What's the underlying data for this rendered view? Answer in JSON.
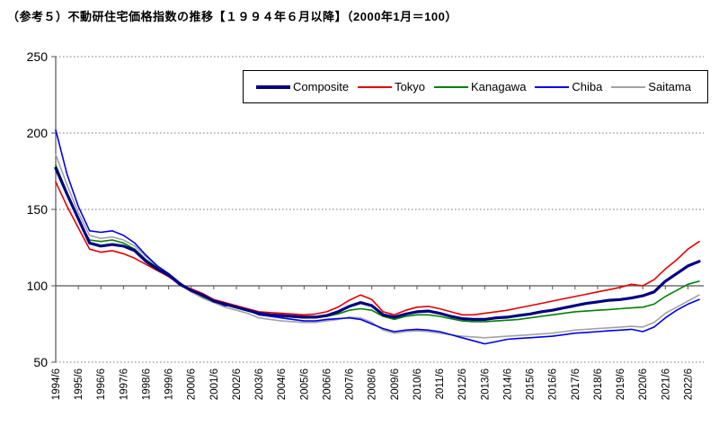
{
  "title": "（参考５）不動研住宅価格指数の推移【１９９４年６月以降】（2000年1月＝100）",
  "chart_data": {
    "type": "line",
    "title": "不動研住宅価格指数の推移（2000年1月＝100）",
    "base_note": "2000年1月＝100",
    "legend_position": "top",
    "grid": "horizontal-dotted",
    "ylim": [
      50,
      250
    ],
    "yticks": [
      50,
      100,
      150,
      200,
      250
    ],
    "x_axis_crosses_at": 100,
    "x_tick_interval": "yearly (June)",
    "dates": [
      "1994/6",
      "1994/12",
      "1995/6",
      "1995/12",
      "1996/6",
      "1996/12",
      "1997/6",
      "1997/12",
      "1998/6",
      "1998/12",
      "1999/6",
      "1999/12",
      "2000/6",
      "2000/12",
      "2001/6",
      "2001/12",
      "2002/6",
      "2002/12",
      "2003/6",
      "2003/12",
      "2004/6",
      "2004/12",
      "2005/6",
      "2005/12",
      "2006/6",
      "2006/12",
      "2007/6",
      "2007/12",
      "2008/6",
      "2008/12",
      "2009/6",
      "2009/12",
      "2010/6",
      "2010/12",
      "2011/6",
      "2011/12",
      "2012/6",
      "2012/12",
      "2013/6",
      "2013/12",
      "2014/6",
      "2014/12",
      "2015/6",
      "2015/12",
      "2016/6",
      "2016/12",
      "2017/6",
      "2017/12",
      "2018/6",
      "2018/12",
      "2019/6",
      "2019/12",
      "2020/6",
      "2020/12",
      "2021/6",
      "2021/12",
      "2022/6",
      "2022/12"
    ],
    "series": [
      {
        "name": "Composite",
        "color": "#000080",
        "line_width": "thick",
        "values": [
          177,
          160,
          144,
          128,
          126,
          127,
          126,
          123,
          116,
          111,
          107,
          101,
          97,
          94,
          90,
          88,
          86,
          84,
          82,
          81,
          80.5,
          80,
          79.5,
          79.5,
          80.5,
          83,
          86.5,
          89,
          87,
          81,
          79.5,
          81.5,
          83,
          83.5,
          82,
          80,
          78.5,
          78,
          78,
          79,
          79.5,
          80.5,
          81.5,
          83,
          84,
          85.5,
          87,
          88.5,
          89.5,
          90.5,
          91,
          92,
          93.5,
          96,
          103,
          108,
          113,
          116
        ]
      },
      {
        "name": "Tokyo",
        "color": "#e60000",
        "line_width": "thin",
        "values": [
          168,
          152,
          138,
          124,
          122,
          123,
          121,
          118,
          114,
          110,
          106,
          101,
          98,
          95,
          91,
          89,
          87,
          85,
          83,
          82.5,
          82,
          81.5,
          81,
          81.5,
          83,
          86,
          90.5,
          94,
          91,
          83,
          81,
          84,
          86,
          86.5,
          85,
          83,
          81,
          81,
          82,
          83,
          84,
          85.5,
          87,
          88.5,
          90,
          91.5,
          93,
          94.5,
          96,
          97.5,
          99,
          101,
          100,
          104,
          111,
          117,
          124,
          129
        ]
      },
      {
        "name": "Kanagawa",
        "color": "#008000",
        "line_width": "thin",
        "values": [
          179,
          161,
          143,
          130,
          129,
          130,
          128,
          124,
          117,
          112,
          107,
          101,
          97,
          93,
          90,
          88,
          86,
          84,
          82,
          81,
          80,
          79.5,
          79,
          79,
          80,
          81.5,
          84,
          85,
          84,
          80,
          78,
          80,
          81,
          81,
          80,
          78.5,
          77,
          76.5,
          76.5,
          77,
          77.5,
          78,
          79,
          80,
          81,
          82,
          83,
          83.5,
          84,
          84.5,
          85,
          85.5,
          86,
          88,
          93,
          97,
          101,
          103
        ]
      },
      {
        "name": "Chiba",
        "color": "#0000ee",
        "line_width": "thin",
        "values": [
          202,
          173,
          152,
          136,
          135,
          136,
          133,
          128,
          120,
          113,
          108,
          102,
          97,
          93,
          90,
          87,
          87,
          84,
          81,
          80,
          79,
          78,
          77,
          77,
          78,
          78.5,
          79,
          78,
          75,
          72,
          70,
          71,
          71.5,
          71,
          70,
          68,
          66,
          64,
          62,
          63.5,
          65,
          65.5,
          66,
          66.5,
          67,
          68,
          69,
          69.5,
          70,
          70.5,
          71,
          71.5,
          70,
          73,
          79,
          84,
          88,
          91
        ]
      },
      {
        "name": "Saitama",
        "color": "#a3a3a3",
        "line_width": "thin",
        "values": [
          186,
          166,
          148,
          133,
          131,
          132,
          130,
          126,
          119,
          113,
          107,
          101,
          96,
          92,
          89,
          86,
          84,
          82,
          79,
          78,
          77,
          76.5,
          76,
          76,
          77,
          78,
          79.5,
          79,
          76,
          71,
          69,
          70,
          70.5,
          70,
          69,
          68,
          67,
          66.5,
          66,
          66.5,
          67,
          67.5,
          68,
          68.5,
          69,
          70,
          71,
          71.5,
          72,
          72.5,
          73,
          73.5,
          73,
          76,
          82,
          86,
          90,
          94
        ]
      }
    ]
  }
}
